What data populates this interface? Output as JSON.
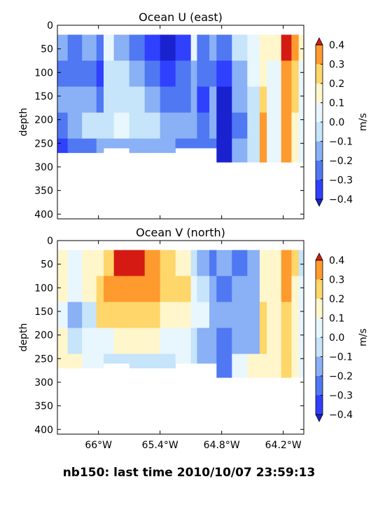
{
  "footer": {
    "text": "nb150: last time 2010/10/07 23:59:13"
  },
  "colors": {
    "levels": [
      {
        "from": -0.4,
        "to": -0.3,
        "color": "#3040ff"
      },
      {
        "from": -0.3,
        "to": -0.2,
        "color": "#4f78f2"
      },
      {
        "from": -0.2,
        "to": -0.1,
        "color": "#8ab0f5"
      },
      {
        "from": -0.1,
        "to": 0.0,
        "color": "#c6e4fa"
      },
      {
        "from": 0.0,
        "to": 0.1,
        "color": "#e8f6fd"
      },
      {
        "from": 0.1,
        "to": 0.2,
        "color": "#fff6cc"
      },
      {
        "from": 0.2,
        "to": 0.3,
        "color": "#ffd66a"
      },
      {
        "from": 0.3,
        "to": 0.4,
        "color": "#ff9a2e"
      }
    ],
    "under": "#1a22d0",
    "over": "#d41a12",
    "deep_under": "#1212b5"
  },
  "chart_data": [
    {
      "type": "heatmap",
      "title": "Ocean U (east)",
      "ylabel": "depth",
      "xlabel": "",
      "x_range": [
        -66.4,
        -64.0
      ],
      "ylim": [
        410,
        0
      ],
      "y_inverted": true,
      "x_ticks": [
        -66.0,
        -65.4,
        -64.8,
        -64.2
      ],
      "x_tick_labels": [
        "66°W",
        "65.4°W",
        "64.8°W",
        "64.2°W"
      ],
      "x_tick_labels_shown": false,
      "y_ticks": [
        0,
        50,
        100,
        150,
        200,
        250,
        300,
        350,
        400
      ],
      "y_tick_labels": [
        "0",
        "50",
        "100",
        "150",
        "200",
        "250",
        "300",
        "350",
        "400"
      ],
      "colorbar": {
        "label": "m/s",
        "ticks": [
          0.4,
          0.3,
          0.2,
          0.1,
          0.0,
          -0.1,
          -0.2,
          -0.3,
          -0.4
        ],
        "tick_labels": [
          "0.4",
          "0.3",
          "0.2",
          "0.1",
          "0.0",
          "−0.1",
          "−0.2",
          "−0.3",
          "−0.4"
        ],
        "extend": "both"
      },
      "data_top_depth": 20,
      "profile_bottom_depth": [
        {
          "x": -66.4,
          "depth": 270
        },
        {
          "x": -66.0,
          "depth": 260
        },
        {
          "x": -65.8,
          "depth": 270
        },
        {
          "x": -65.4,
          "depth": 270
        },
        {
          "x": -65.3,
          "depth": 260
        },
        {
          "x": -64.9,
          "depth": 290
        },
        {
          "x": -64.0,
          "depth": 290
        }
      ],
      "columns": [
        {
          "x0": -66.4,
          "x1": -66.3,
          "values": [
            -0.15,
            -0.25,
            -0.2,
            -0.3,
            -0.35
          ]
        },
        {
          "x0": -66.3,
          "x1": -66.16,
          "values": [
            -0.25,
            -0.25,
            -0.2,
            -0.2,
            -0.25
          ]
        },
        {
          "x0": -66.16,
          "x1": -66.02,
          "values": [
            -0.15,
            -0.25,
            -0.2,
            -0.05,
            -0.25
          ]
        },
        {
          "x0": -66.02,
          "x1": -65.95,
          "values": [
            -0.25,
            -0.35,
            -0.25,
            -0.05,
            -0.2
          ]
        },
        {
          "x0": -65.95,
          "x1": -65.85,
          "values": [
            0.05,
            -0.05,
            -0.05,
            -0.05,
            -0.15
          ]
        },
        {
          "x0": -65.85,
          "x1": -65.7,
          "values": [
            -0.15,
            -0.05,
            -0.05,
            0.05,
            -0.15
          ]
        },
        {
          "x0": -65.7,
          "x1": -65.55,
          "values": [
            -0.25,
            -0.15,
            -0.05,
            -0.05,
            -0.15
          ]
        },
        {
          "x0": -65.55,
          "x1": -65.4,
          "values": [
            -0.35,
            -0.25,
            -0.15,
            -0.05,
            -0.15
          ]
        },
        {
          "x0": -65.4,
          "x1": -65.25,
          "values": [
            -0.45,
            -0.35,
            -0.25,
            -0.15,
            -0.2
          ]
        },
        {
          "x0": -65.25,
          "x1": -65.1,
          "values": [
            -0.35,
            -0.25,
            -0.25,
            -0.15,
            -0.25
          ]
        },
        {
          "x0": -65.1,
          "x1": -65.04,
          "values": [
            0.05,
            -0.15,
            -0.15,
            -0.15,
            -0.25
          ]
        },
        {
          "x0": -65.04,
          "x1": -64.92,
          "values": [
            -0.25,
            -0.25,
            -0.35,
            -0.25,
            -0.25
          ]
        },
        {
          "x0": -64.92,
          "x1": -64.85,
          "values": [
            -0.15,
            -0.25,
            -0.2,
            -0.15,
            -0.25
          ]
        },
        {
          "x0": -64.85,
          "x1": -64.7,
          "values": [
            -0.25,
            -0.35,
            -0.45,
            -0.45,
            -0.45
          ]
        },
        {
          "x0": -64.7,
          "x1": -64.55,
          "values": [
            -0.05,
            -0.15,
            -0.15,
            -0.25,
            -0.15
          ]
        },
        {
          "x0": -64.55,
          "x1": -64.43,
          "values": [
            0.05,
            0.0,
            -0.05,
            -0.05,
            -0.05
          ]
        },
        {
          "x0": -64.43,
          "x1": -64.36,
          "values": [
            0.15,
            0.15,
            0.25,
            0.35,
            0.35
          ]
        },
        {
          "x0": -64.36,
          "x1": -64.22,
          "values": [
            0.15,
            0.05,
            0.05,
            0.05,
            0.05
          ]
        },
        {
          "x0": -64.22,
          "x1": -64.12,
          "values": [
            0.45,
            0.35,
            0.3,
            0.3,
            0.35
          ]
        },
        {
          "x0": -64.12,
          "x1": -64.05,
          "values": [
            0.35,
            0.25,
            0.2,
            0.15,
            0.1
          ]
        },
        {
          "x0": -64.05,
          "x1": -64.0,
          "values": [
            0.15,
            0.05,
            0.05,
            0.05,
            0.05
          ]
        }
      ],
      "depth_bands": [
        20,
        75,
        130,
        185,
        240,
        300
      ]
    },
    {
      "type": "heatmap",
      "title": "Ocean V (north)",
      "ylabel": "depth",
      "xlabel": "",
      "x_range": [
        -66.4,
        -64.0
      ],
      "ylim": [
        410,
        0
      ],
      "y_inverted": true,
      "x_ticks": [
        -66.0,
        -65.4,
        -64.8,
        -64.2
      ],
      "x_tick_labels": [
        "66°W",
        "65.4°W",
        "64.8°W",
        "64.2°W"
      ],
      "x_tick_labels_shown": true,
      "y_ticks": [
        0,
        50,
        100,
        150,
        200,
        250,
        300,
        350,
        400
      ],
      "y_tick_labels": [
        "0",
        "50",
        "100",
        "150",
        "200",
        "250",
        "300",
        "350",
        "400"
      ],
      "colorbar": {
        "label": "m/s",
        "ticks": [
          0.4,
          0.3,
          0.2,
          0.1,
          0.0,
          -0.1,
          -0.2,
          -0.3,
          -0.4
        ],
        "tick_labels": [
          "0.4",
          "0.3",
          "0.2",
          "0.1",
          "0.0",
          "−0.1",
          "−0.2",
          "−0.3",
          "−0.4"
        ],
        "extend": "both"
      },
      "data_top_depth": 20,
      "profile_bottom_depth": [
        {
          "x": -66.4,
          "depth": 270
        },
        {
          "x": -66.0,
          "depth": 260
        },
        {
          "x": -65.8,
          "depth": 270
        },
        {
          "x": -65.4,
          "depth": 270
        },
        {
          "x": -65.3,
          "depth": 260
        },
        {
          "x": -64.9,
          "depth": 290
        },
        {
          "x": -64.0,
          "depth": 290
        }
      ],
      "columns": [
        {
          "x0": -66.4,
          "x1": -66.3,
          "values": [
            0.15,
            0.15,
            0.05,
            0.15,
            0.15
          ]
        },
        {
          "x0": -66.3,
          "x1": -66.16,
          "values": [
            0.05,
            0.05,
            -0.15,
            -0.05,
            0.15
          ]
        },
        {
          "x0": -66.16,
          "x1": -66.02,
          "values": [
            0.15,
            0.15,
            -0.05,
            0.05,
            0.05
          ]
        },
        {
          "x0": -66.02,
          "x1": -65.95,
          "values": [
            0.15,
            0.25,
            0.25,
            0.05,
            0.05
          ]
        },
        {
          "x0": -65.95,
          "x1": -65.85,
          "values": [
            0.25,
            0.3,
            0.25,
            0.05,
            -0.05
          ]
        },
        {
          "x0": -65.85,
          "x1": -65.7,
          "values": [
            0.45,
            0.3,
            0.25,
            0.15,
            -0.05
          ]
        },
        {
          "x0": -65.7,
          "x1": -65.55,
          "values": [
            0.45,
            0.35,
            0.25,
            0.15,
            -0.05
          ]
        },
        {
          "x0": -65.55,
          "x1": -65.4,
          "values": [
            0.3,
            0.3,
            0.25,
            0.15,
            -0.05
          ]
        },
        {
          "x0": -65.4,
          "x1": -65.25,
          "values": [
            0.25,
            0.25,
            0.15,
            0.05,
            -0.05
          ]
        },
        {
          "x0": -65.25,
          "x1": -65.1,
          "values": [
            0.15,
            0.25,
            0.15,
            0.05,
            0.05
          ]
        },
        {
          "x0": -65.1,
          "x1": -65.04,
          "values": [
            -0.05,
            0.05,
            0.05,
            -0.05,
            -0.05
          ]
        },
        {
          "x0": -65.04,
          "x1": -64.92,
          "values": [
            -0.15,
            -0.05,
            0.05,
            -0.15,
            -0.15
          ]
        },
        {
          "x0": -64.92,
          "x1": -64.85,
          "values": [
            -0.25,
            -0.15,
            -0.15,
            -0.15,
            -0.15
          ]
        },
        {
          "x0": -64.85,
          "x1": -64.7,
          "values": [
            -0.15,
            -0.25,
            -0.15,
            -0.25,
            -0.25
          ]
        },
        {
          "x0": -64.7,
          "x1": -64.55,
          "values": [
            -0.25,
            -0.15,
            -0.15,
            -0.15,
            0.05
          ]
        },
        {
          "x0": -64.55,
          "x1": -64.43,
          "values": [
            -0.15,
            -0.15,
            -0.15,
            -0.2,
            0.15
          ]
        },
        {
          "x0": -64.43,
          "x1": -64.36,
          "values": [
            0.15,
            0.15,
            0.25,
            0.25,
            0.15
          ]
        },
        {
          "x0": -64.36,
          "x1": -64.22,
          "values": [
            0.15,
            0.15,
            0.15,
            0.15,
            0.15
          ]
        },
        {
          "x0": -64.22,
          "x1": -64.12,
          "values": [
            0.35,
            0.3,
            0.25,
            0.25,
            0.2
          ]
        },
        {
          "x0": -64.12,
          "x1": -64.05,
          "values": [
            0.25,
            0.15,
            0.15,
            0.15,
            0.15
          ]
        },
        {
          "x0": -64.05,
          "x1": -64.0,
          "values": [
            -0.05,
            0.05,
            0.05,
            0.05,
            0.05
          ]
        }
      ],
      "depth_bands": [
        20,
        75,
        130,
        185,
        240,
        300
      ]
    }
  ]
}
